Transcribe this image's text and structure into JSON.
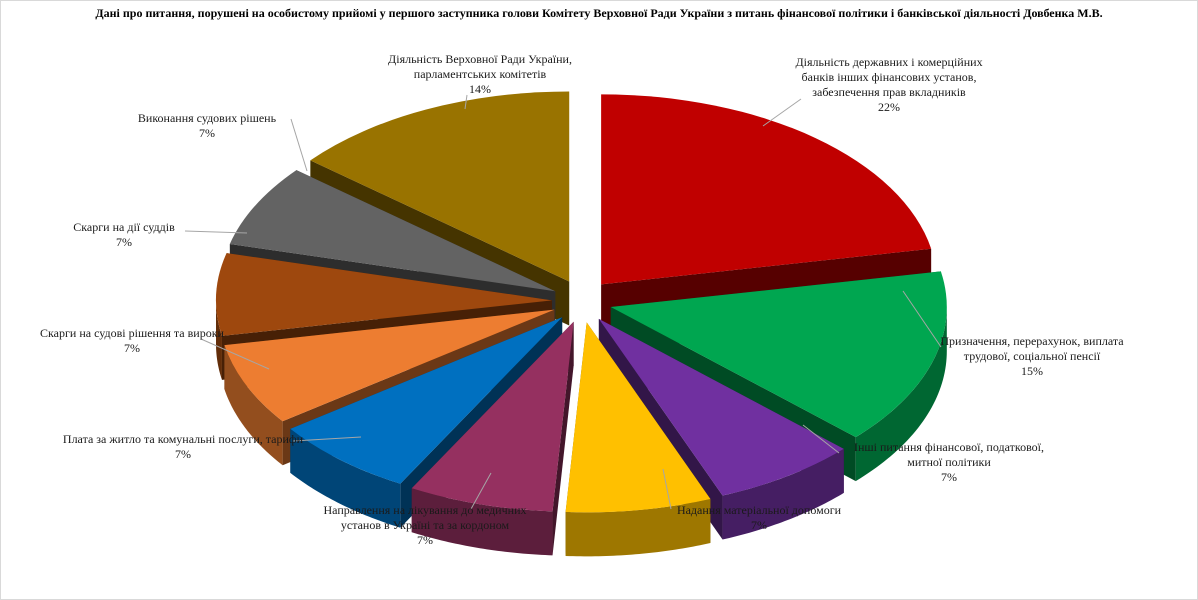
{
  "chart_data": {
    "type": "pie",
    "title": "Дані про питання,  порушені  на особистому  прийомі  у першого  заступника  голови Комітету  Верховної  Ради України  з питань  фінансової політики  і банківської  діяльності  Довбенка  М.В.",
    "unit": "%",
    "legend": "none",
    "slices": [
      {
        "label": "Діяльність  державних  і комерційних банків інших фінансових установ, забезпечення прав вкладників",
        "value": 22,
        "value_label": "22%",
        "color": "#c00000"
      },
      {
        "label": "Призначення, перерахунок, виплата трудової, соціальної пенсії",
        "value": 15,
        "value_label": "15%",
        "color": "#00a650"
      },
      {
        "label": "Інші питання фінансової, податкової, митної політики",
        "value": 7,
        "value_label": "7%",
        "color": "#7030a0"
      },
      {
        "label": "Надання  матеріальної допомоги",
        "value": 7,
        "value_label": "7%",
        "color": "#ffc000"
      },
      {
        "label": "Направлення на лікування  до медичних установ в Україні  та за кордоном",
        "value": 7,
        "value_label": "7%",
        "color": "#953060"
      },
      {
        "label": "Плата за житло та комунальні послуги, тарифи",
        "value": 7,
        "value_label": "7%",
        "color": "#0070c0"
      },
      {
        "label": "Скарги на судові рішення та вироки",
        "value": 7,
        "value_label": "7%",
        "color": "#ed7d31"
      },
      {
        "label": "Скарги на дії  суддів",
        "value": 7,
        "value_label": "7%",
        "color": "#9e480e"
      },
      {
        "label": "Виконання судових рішень",
        "value": 7,
        "value_label": "7%",
        "color": "#636363"
      },
      {
        "label": "Діяльність  Верховної  Ради України, парламентських  комітетів",
        "value": 14,
        "value_label": "14%",
        "color": "#997300"
      }
    ]
  }
}
